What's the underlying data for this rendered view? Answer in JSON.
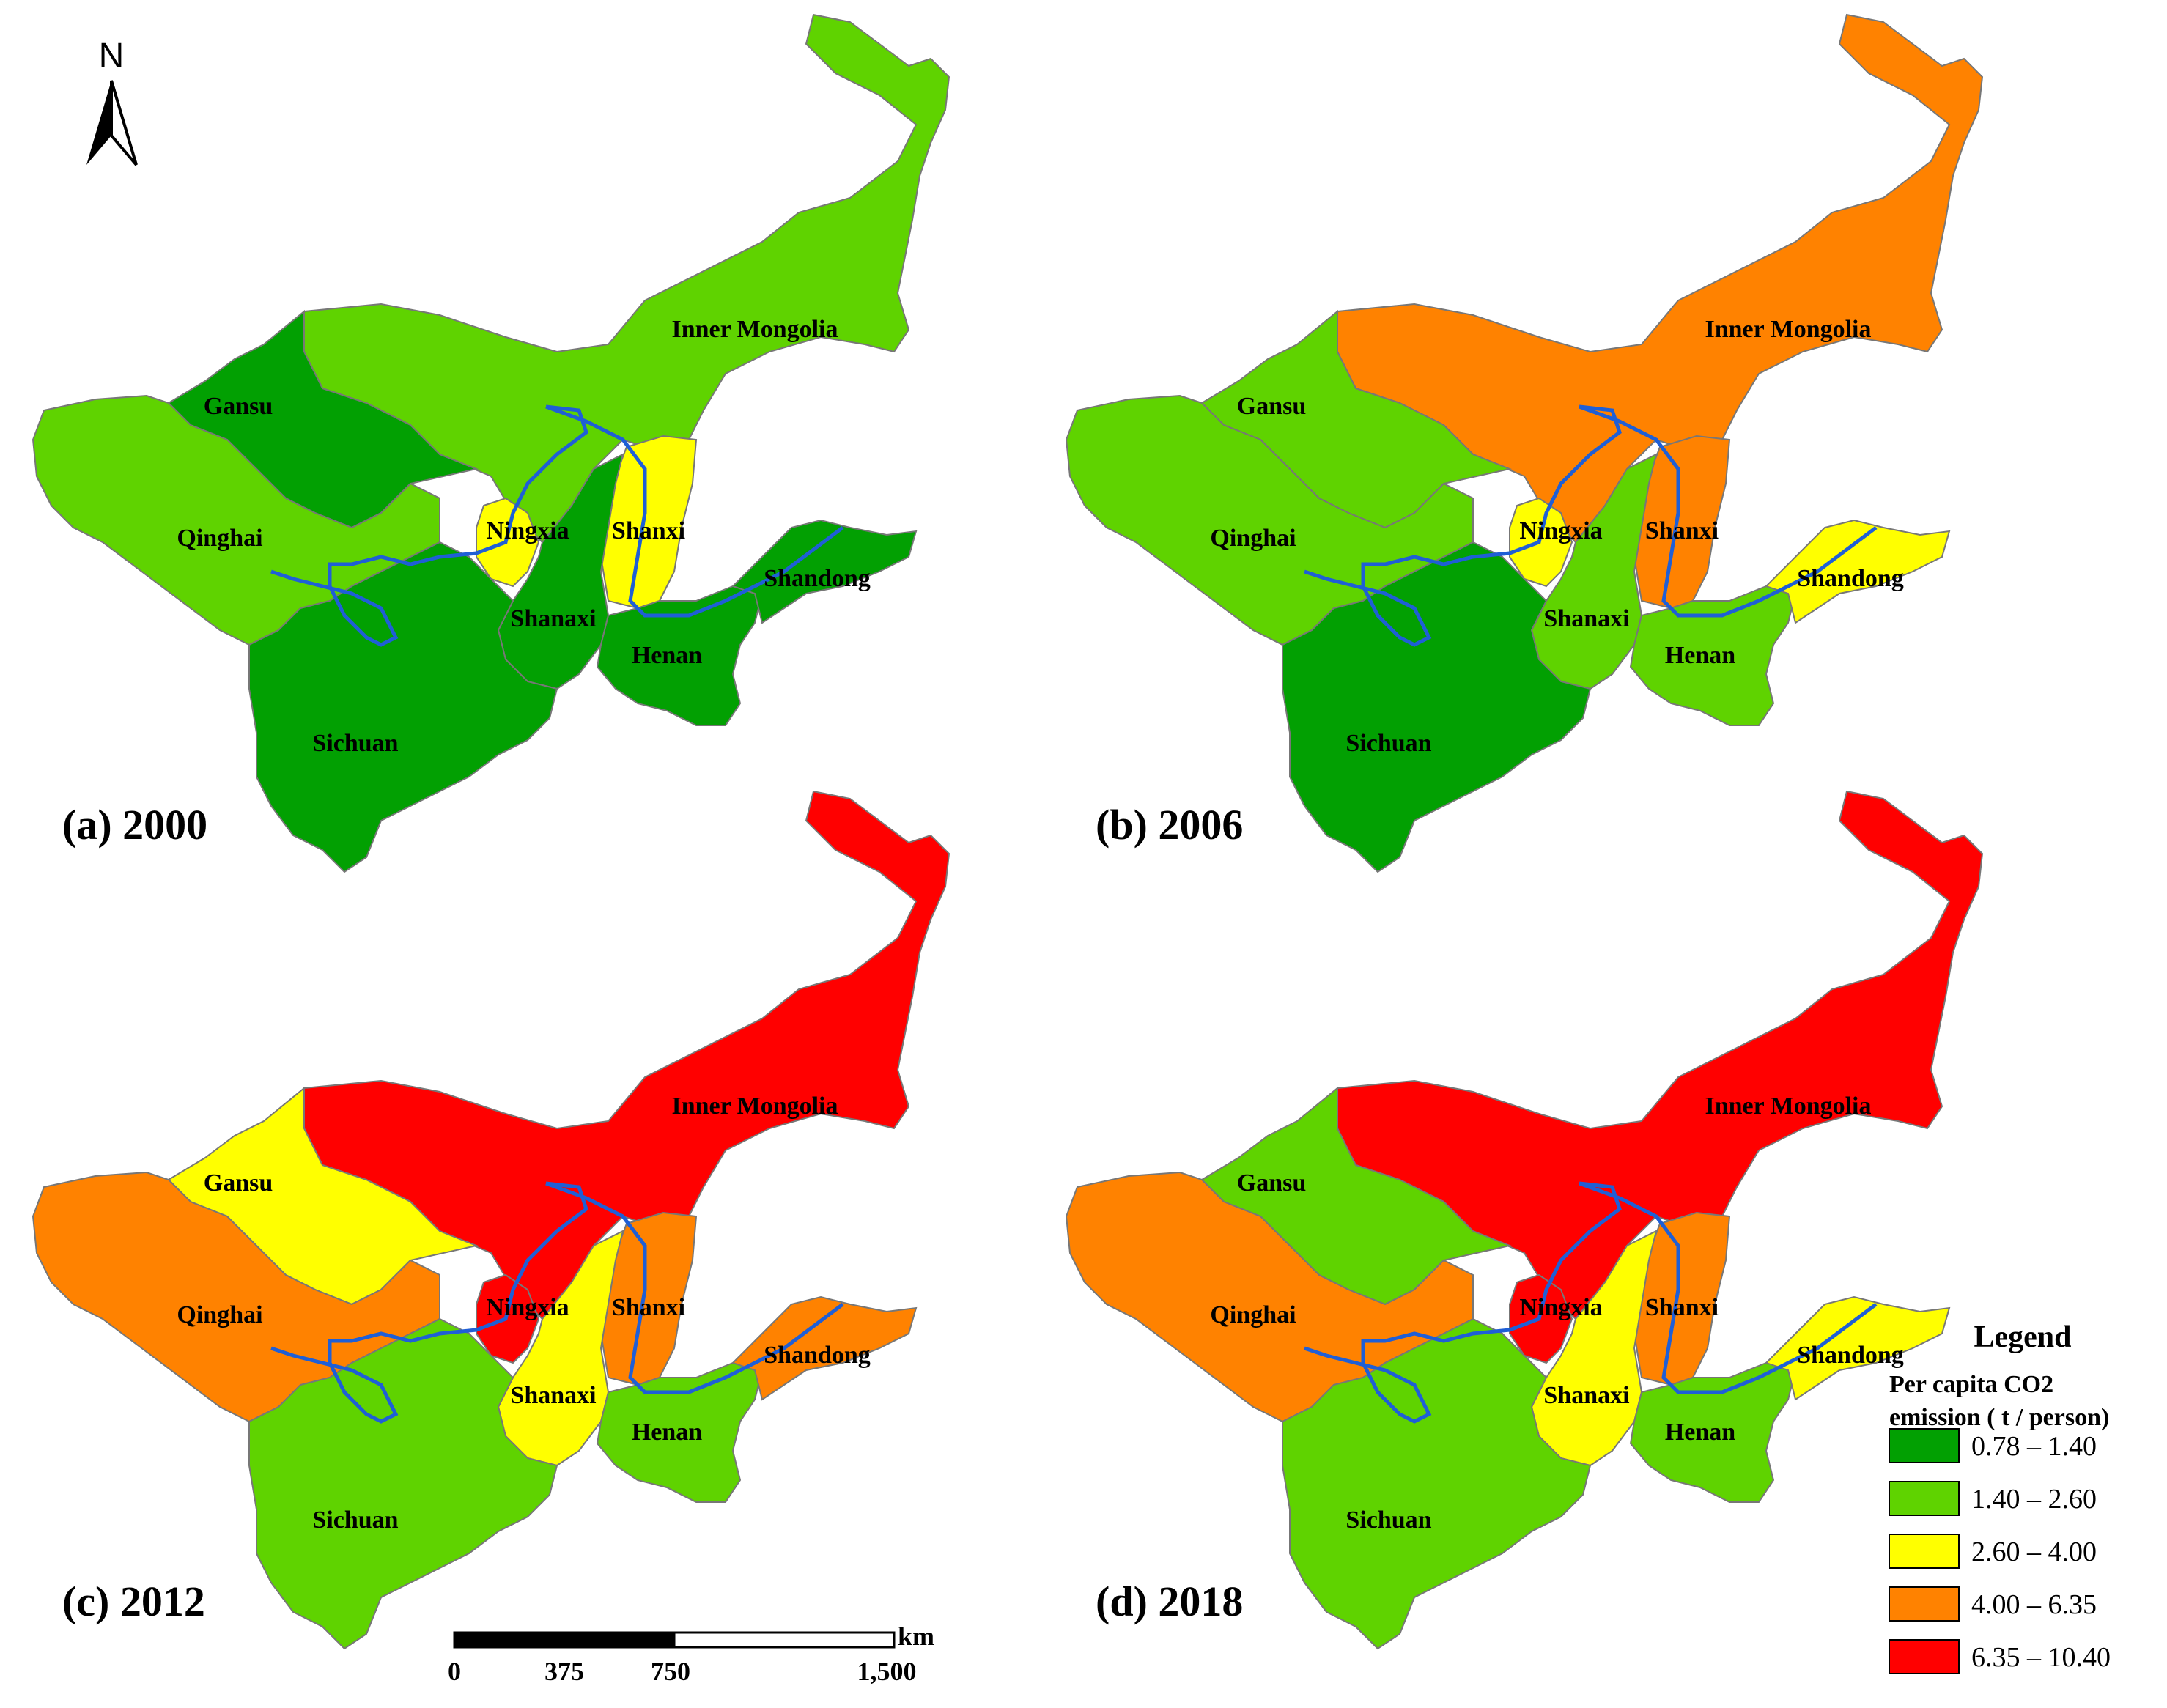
{
  "north": {
    "label": "N"
  },
  "classes": [
    {
      "range": "0.78 – 1.40",
      "color": "#02a002"
    },
    {
      "range": "1.40 – 2.60",
      "color": "#5fd300"
    },
    {
      "range": "2.60 – 4.00",
      "color": "#ffff00"
    },
    {
      "range": "4.00 – 6.35",
      "color": "#ff8200"
    },
    {
      "range": "6.35 – 10.40",
      "color": "#ff0000"
    }
  ],
  "river_color": "#1f5fd6",
  "border_color": "#777777",
  "panels": [
    {
      "title": "(a) 2000",
      "values": {
        "inner_mongolia": 1,
        "gansu": 0,
        "qinghai": 1,
        "ningxia": 2,
        "shanxi": 2,
        "shanaxi": 0,
        "henan": 0,
        "shandong": 0,
        "sichuan": 0
      }
    },
    {
      "title": "(b) 2006",
      "values": {
        "inner_mongolia": 3,
        "gansu": 1,
        "qinghai": 1,
        "ningxia": 2,
        "shanxi": 3,
        "shanaxi": 1,
        "henan": 1,
        "shandong": 2,
        "sichuan": 0
      }
    },
    {
      "title": "(c) 2012",
      "values": {
        "inner_mongolia": 4,
        "gansu": 2,
        "qinghai": 3,
        "ningxia": 4,
        "shanxi": 3,
        "shanaxi": 2,
        "henan": 1,
        "shandong": 3,
        "sichuan": 1
      }
    },
    {
      "title": "(d) 2018",
      "values": {
        "inner_mongolia": 4,
        "gansu": 1,
        "qinghai": 3,
        "ningxia": 4,
        "shanxi": 3,
        "shanaxi": 2,
        "henan": 1,
        "shandong": 2,
        "sichuan": 1
      }
    }
  ],
  "provinces": [
    {
      "key": "inner_mongolia",
      "label": "Inner Mongolia"
    },
    {
      "key": "gansu",
      "label": "Gansu"
    },
    {
      "key": "qinghai",
      "label": "Qinghai"
    },
    {
      "key": "ningxia",
      "label": "Ningxia"
    },
    {
      "key": "shanxi",
      "label": "Shanxi"
    },
    {
      "key": "shanaxi",
      "label": "Shanaxi"
    },
    {
      "key": "henan",
      "label": "Henan"
    },
    {
      "key": "shandong",
      "label": "Shandong"
    },
    {
      "key": "sichuan",
      "label": "Sichuan"
    }
  ],
  "legend": {
    "title": "Legend",
    "subtitle_line1": "Per capita CO2",
    "subtitle_line2": "emission ( t / person)"
  },
  "scalebar": {
    "unit": "km",
    "ticks": [
      "0",
      "375",
      "750",
      "1,500"
    ]
  }
}
